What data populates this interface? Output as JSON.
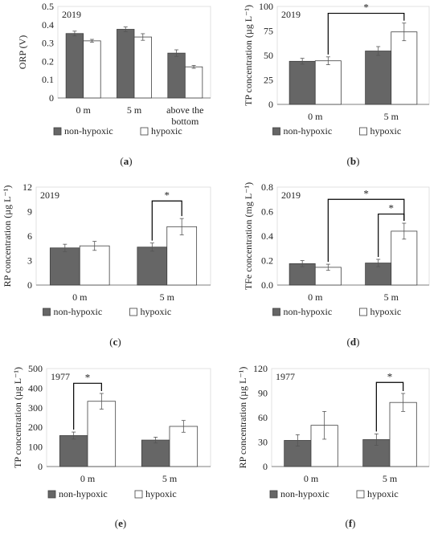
{
  "legend": {
    "non_hypoxic": "non-hypoxic",
    "hypoxic": "hypoxic"
  },
  "colors": {
    "non_hypoxic": "#666666",
    "hypoxic": "#ffffff",
    "border": "#404040",
    "axis": "#7f7f7f",
    "bracket": "#000000"
  },
  "chart_data": [
    {
      "id": "a",
      "panel_label": "(a)",
      "type": "bar",
      "year": "2019",
      "ylabel": "ORP (V)",
      "ylim": [
        0,
        0.5
      ],
      "yticks": [
        0,
        0.1,
        0.2,
        0.3,
        0.4,
        0.5
      ],
      "tick_labels": [
        "0",
        "0.1",
        "0.2",
        "0.3",
        "0.4",
        "0.5"
      ],
      "categories": [
        "0 m",
        "5 m",
        "above the bottom"
      ],
      "series": [
        {
          "name": "non-hypoxic",
          "values": [
            0.352,
            0.375,
            0.245
          ],
          "errors": [
            0.013,
            0.013,
            0.018
          ]
        },
        {
          "name": "hypoxic",
          "values": [
            0.312,
            0.333,
            0.17
          ],
          "errors": [
            0.008,
            0.018,
            0.008
          ]
        }
      ],
      "brackets": []
    },
    {
      "id": "b",
      "panel_label": "(b)",
      "type": "bar",
      "year": "2019",
      "ylabel": "TP concentration (µg L⁻¹)",
      "ylim": [
        0,
        100
      ],
      "yticks": [
        0,
        25,
        50,
        75,
        100
      ],
      "tick_labels": [
        "0",
        "25",
        "50",
        "75",
        "100"
      ],
      "categories": [
        "0 m",
        "5 m"
      ],
      "series": [
        {
          "name": "non-hypoxic",
          "values": [
            44,
            54.5
          ],
          "errors": [
            3,
            4.5
          ]
        },
        {
          "name": "hypoxic",
          "values": [
            44.5,
            74
          ],
          "errors": [
            4,
            9
          ]
        }
      ],
      "brackets": [
        {
          "from": [
            0,
            1
          ],
          "to": [
            1,
            1
          ],
          "top": 93,
          "label": "*"
        }
      ]
    },
    {
      "id": "c",
      "panel_label": "(c)",
      "type": "bar",
      "year": "2019",
      "ylabel": "RP concentration (µg L⁻¹)",
      "ylim": [
        0,
        12
      ],
      "yticks": [
        0,
        3,
        6,
        9,
        12
      ],
      "tick_labels": [
        "0",
        "3",
        "6",
        "9",
        "12"
      ],
      "categories": [
        "0 m",
        "5 m"
      ],
      "series": [
        {
          "name": "non-hypoxic",
          "values": [
            4.55,
            4.65
          ],
          "errors": [
            0.45,
            0.5
          ]
        },
        {
          "name": "hypoxic",
          "values": [
            4.8,
            7.15
          ],
          "errors": [
            0.55,
            1.0
          ]
        }
      ],
      "brackets": [
        {
          "from": [
            1,
            0
          ],
          "to": [
            1,
            1
          ],
          "top": 10.3,
          "label": "*"
        }
      ]
    },
    {
      "id": "d",
      "panel_label": "(d)",
      "type": "bar",
      "year": "2019",
      "ylabel": "TFe concentration (mg L⁻¹)",
      "ylim": [
        0,
        0.8
      ],
      "yticks": [
        0,
        0.2,
        0.4,
        0.6,
        0.8
      ],
      "tick_labels": [
        "0.0",
        "0.2",
        "0.4",
        "0.6",
        "0.8"
      ],
      "categories": [
        "0 m",
        "5 m"
      ],
      "series": [
        {
          "name": "non-hypoxic",
          "values": [
            0.175,
            0.18
          ],
          "errors": [
            0.025,
            0.03
          ]
        },
        {
          "name": "hypoxic",
          "values": [
            0.145,
            0.44
          ],
          "errors": [
            0.025,
            0.065
          ]
        }
      ],
      "brackets": [
        {
          "from": [
            0,
            1
          ],
          "to": [
            1,
            1
          ],
          "top": 0.7,
          "label": "*"
        },
        {
          "from": [
            1,
            0
          ],
          "to": [
            1,
            1
          ],
          "top": 0.58,
          "label": "*"
        }
      ]
    },
    {
      "id": "e",
      "panel_label": "(e)",
      "type": "bar",
      "year": "1977",
      "ylabel": "TP concentration (µg L⁻¹)",
      "ylim": [
        0,
        500
      ],
      "yticks": [
        0,
        100,
        200,
        300,
        400,
        500
      ],
      "tick_labels": [
        "0",
        "100",
        "200",
        "300",
        "400",
        "500"
      ],
      "categories": [
        "0 m",
        "5 m"
      ],
      "series": [
        {
          "name": "non-hypoxic",
          "values": [
            158,
            135
          ],
          "errors": [
            18,
            15
          ]
        },
        {
          "name": "hypoxic",
          "values": [
            333,
            205
          ],
          "errors": [
            40,
            30
          ]
        }
      ],
      "brackets": [
        {
          "from": [
            0,
            0
          ],
          "to": [
            0,
            1
          ],
          "top": 425,
          "label": "*"
        }
      ]
    },
    {
      "id": "f",
      "panel_label": "(f)",
      "type": "bar",
      "year": "1977",
      "ylabel": "RP concentration (µg L⁻¹)",
      "ylim": [
        0,
        120
      ],
      "yticks": [
        0,
        30,
        60,
        90,
        120
      ],
      "tick_labels": [
        "0",
        "30",
        "60",
        "90",
        "120"
      ],
      "categories": [
        "0 m",
        "5 m"
      ],
      "series": [
        {
          "name": "non-hypoxic",
          "values": [
            32,
            33
          ],
          "errors": [
            7,
            7
          ]
        },
        {
          "name": "hypoxic",
          "values": [
            50.5,
            78.5
          ],
          "errors": [
            17,
            11
          ]
        }
      ],
      "brackets": [
        {
          "from": [
            1,
            0
          ],
          "to": [
            1,
            1
          ],
          "top": 103,
          "label": "*"
        }
      ]
    }
  ]
}
